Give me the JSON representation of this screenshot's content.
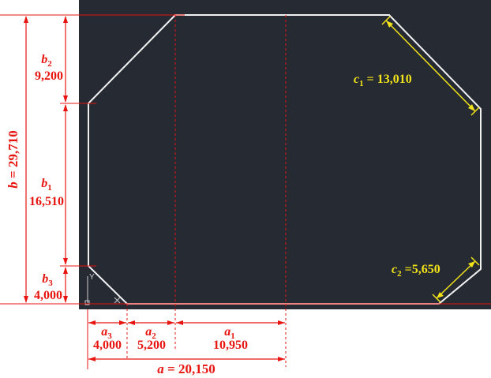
{
  "colors": {
    "canvas": "#252a33",
    "outline": "#f2f2f2",
    "dim": "#e8140f",
    "dim_yellow": "#f2e21a",
    "ucs": "#cfcfcf"
  },
  "dimensions": {
    "b_total": {
      "symbol": "b",
      "eq": " = ",
      "value": "29,710"
    },
    "b2": {
      "symbol": "b",
      "sub": "2",
      "value": "9,200"
    },
    "b1": {
      "symbol": "b",
      "sub": "1",
      "value": "16,510"
    },
    "b3": {
      "symbol": "b",
      "sub": "3",
      "value": "4,000"
    },
    "a3": {
      "symbol": "a",
      "sub": "3",
      "value": "4,000"
    },
    "a2": {
      "symbol": "a",
      "sub": "2",
      "value": "5,200"
    },
    "a1": {
      "symbol": "a",
      "sub": "1",
      "value": "10,950"
    },
    "a_total": {
      "symbol": "a",
      "eq": " = ",
      "value": "20,150"
    },
    "c1": {
      "symbol": "c",
      "sub": "1",
      "eq": " = ",
      "value": "13,010"
    },
    "c2": {
      "symbol": "c",
      "sub": "2",
      "eq": " =",
      "value": "5,650"
    }
  },
  "ucs": {
    "y_label": "Y"
  }
}
